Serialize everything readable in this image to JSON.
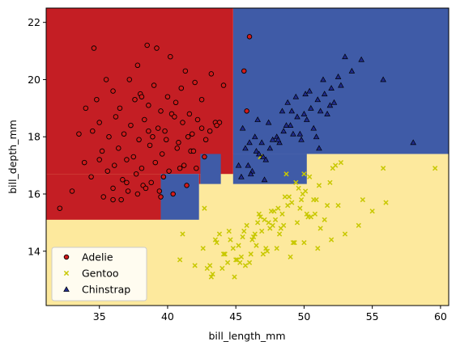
{
  "chart_data": {
    "type": "scatter",
    "title": "",
    "xlabel": "bill_length_mm",
    "ylabel": "bill_depth_mm",
    "xlim": [
      31.1,
      60.6
    ],
    "ylim": [
      12.1,
      22.5
    ],
    "xticks": [
      35,
      40,
      45,
      50,
      55,
      60
    ],
    "yticks": [
      14,
      16,
      18,
      20,
      22
    ],
    "grid": false,
    "legend_position": "lower-left",
    "colors": {
      "region_adelie": "#c41e24",
      "region_gentoo": "#fde99d",
      "region_chinstrap": "#3f5ba7",
      "adelie_marker": "#d11a1a",
      "gentoo_marker": "#c8c800",
      "chinstrap_marker": "#1f2a8c"
    },
    "regions": [
      {
        "class": "Gentoo",
        "x": [
          31.1,
          60.6
        ],
        "y": [
          12.1,
          17.4
        ]
      },
      {
        "class": "Chinstrap",
        "x": [
          44.8,
          60.6
        ],
        "y": [
          17.4,
          22.5
        ]
      },
      {
        "class": "Chinstrap",
        "x": [
          44.8,
          50.2
        ],
        "y": [
          16.35,
          17.4
        ]
      },
      {
        "class": "Adelie",
        "x": [
          31.1,
          44.8
        ],
        "y": [
          16.7,
          22.5
        ]
      },
      {
        "class": "Adelie",
        "x": [
          31.1,
          39.5
        ],
        "y": [
          15.1,
          16.7
        ]
      },
      {
        "class": "Chinstrap",
        "x": [
          39.5,
          42.3
        ],
        "y": [
          15.1,
          16.7
        ]
      },
      {
        "class": "Adelie",
        "x": [
          42.3,
          42.4
        ],
        "y": [
          16.35,
          16.7
        ]
      },
      {
        "class": "Chinstrap",
        "x": [
          42.4,
          43.9
        ],
        "y": [
          16.35,
          17.4
        ]
      },
      {
        "class": "Adelie",
        "x": [
          41.9,
          42.4
        ],
        "y": [
          17.4,
          17.4
        ]
      }
    ],
    "series": [
      {
        "name": "Adelie",
        "marker": "circle",
        "x": [
          34.6,
          37.8,
          38.5,
          39.2,
          40.2,
          41.3,
          45.6,
          46.0,
          35.5,
          36.0,
          37.2,
          38.0,
          39.0,
          40.0,
          41.0,
          42.0,
          43.2,
          44.1,
          36.5,
          37.6,
          38.6,
          39.5,
          40.6,
          41.6,
          42.5,
          43.5,
          34.0,
          35.0,
          36.2,
          37.3,
          38.3,
          39.3,
          40.3,
          41.1,
          42.2,
          43.1,
          33.5,
          34.5,
          35.7,
          36.8,
          37.9,
          38.9,
          39.8,
          40.8,
          41.8,
          42.8,
          43.8,
          35.2,
          36.4,
          37.5,
          38.7,
          39.6,
          40.7,
          41.7,
          42.7,
          33.9,
          35.0,
          36.1,
          37.0,
          38.1,
          39.1,
          40.1,
          41.2,
          42.1,
          34.4,
          35.6,
          36.7,
          37.7,
          38.8,
          39.7,
          40.9,
          41.9,
          36.0,
          37.1,
          38.2,
          39.4,
          40.4,
          41.4,
          35.3,
          36.6,
          37.8,
          38.4,
          39.5,
          32.1,
          33.0,
          36.0,
          37.0,
          38.6,
          39.9,
          41.5,
          42.5,
          43.6,
          45.8,
          34.8,
          38.1,
          40.5
        ],
        "y": [
          21.1,
          20.5,
          21.2,
          21.1,
          20.8,
          20.3,
          20.3,
          21.5,
          20.0,
          19.6,
          20.0,
          19.5,
          19.8,
          19.4,
          19.7,
          19.9,
          20.2,
          19.8,
          19.0,
          19.3,
          19.1,
          18.9,
          19.2,
          18.8,
          19.3,
          18.5,
          19.0,
          18.5,
          18.7,
          18.4,
          18.6,
          18.3,
          18.8,
          18.5,
          18.6,
          18.2,
          18.1,
          18.2,
          18.0,
          18.1,
          17.9,
          18.0,
          18.2,
          17.8,
          18.1,
          17.9,
          18.5,
          17.5,
          17.6,
          17.3,
          17.7,
          17.4,
          17.6,
          17.5,
          17.3,
          17.1,
          17.2,
          17.0,
          17.2,
          16.9,
          17.1,
          16.8,
          17.0,
          16.9,
          16.6,
          16.8,
          16.5,
          16.7,
          16.4,
          16.6,
          16.9,
          17.5,
          16.2,
          16.1,
          16.3,
          16.1,
          16.0,
          16.3,
          15.9,
          15.8,
          16.0,
          16.2,
          15.9,
          15.5,
          16.1,
          15.8,
          16.4,
          18.2,
          17.9,
          18.0,
          18.3,
          18.4,
          18.9,
          19.3,
          19.4,
          18.7
        ]
      },
      {
        "name": "Gentoo",
        "marker": "x",
        "x": [
          40.9,
          42.0,
          43.2,
          44.0,
          45.0,
          46.0,
          47.0,
          48.0,
          49.0,
          50.0,
          51.0,
          52.0,
          53.0,
          54.0,
          55.0,
          56.0,
          59.6,
          43.5,
          44.5,
          45.5,
          46.5,
          47.5,
          48.5,
          49.5,
          50.5,
          51.5,
          52.5,
          44.2,
          45.2,
          46.2,
          47.2,
          48.2,
          49.2,
          50.2,
          51.2,
          43.8,
          44.8,
          45.8,
          46.8,
          47.8,
          48.8,
          49.8,
          50.8,
          42.6,
          43.6,
          44.6,
          45.6,
          46.6,
          47.6,
          48.6,
          49.6,
          45.1,
          46.1,
          47.1,
          48.1,
          49.1,
          50.1,
          51.1,
          52.1,
          44.4,
          45.4,
          46.4,
          47.4,
          48.4,
          49.4,
          50.4,
          46.9,
          47.9,
          48.9,
          49.9,
          50.9,
          51.9,
          42.9,
          44.9,
          46.3,
          48.3,
          50.3,
          52.3,
          45.7,
          47.7,
          49.7,
          51.7,
          55.8,
          43.3,
          45.3,
          47.3,
          49.3,
          44.1,
          46.7,
          48.7,
          50.7,
          52.7,
          54.3,
          43.1,
          41.1,
          42.7,
          46.8,
          50.0
        ],
        "y": [
          13.7,
          13.5,
          13.1,
          13.4,
          13.7,
          13.6,
          13.9,
          14.1,
          13.8,
          14.3,
          14.1,
          14.4,
          14.6,
          14.9,
          15.4,
          15.7,
          16.9,
          14.4,
          14.7,
          14.5,
          14.2,
          14.8,
          14.9,
          15.0,
          15.2,
          15.1,
          15.6,
          13.9,
          14.2,
          14.4,
          14.1,
          14.6,
          14.3,
          15.3,
          14.8,
          14.6,
          14.1,
          14.9,
          15.2,
          15.4,
          15.6,
          15.8,
          15.3,
          14.1,
          14.3,
          14.4,
          14.7,
          15.0,
          15.4,
          15.9,
          16.2,
          13.7,
          13.9,
          15.1,
          15.5,
          15.7,
          16.1,
          16.3,
          16.9,
          13.6,
          13.8,
          14.6,
          15.0,
          15.3,
          16.4,
          16.6,
          14.7,
          15.1,
          15.9,
          16.0,
          15.8,
          16.4,
          13.4,
          13.1,
          14.5,
          14.8,
          15.2,
          17.0,
          13.5,
          14.9,
          15.5,
          15.6,
          16.9,
          13.2,
          13.6,
          14.0,
          14.3,
          13.9,
          15.3,
          16.7,
          15.8,
          17.1,
          15.8,
          13.5,
          14.6,
          15.5,
          17.3,
          16.7
        ]
      },
      {
        "name": "Chinstrap",
        "marker": "triangle",
        "x": [
          46.0,
          46.5,
          47.0,
          47.5,
          48.0,
          48.5,
          49.0,
          49.5,
          50.0,
          50.5,
          51.0,
          51.5,
          52.0,
          52.5,
          53.5,
          54.2,
          55.8,
          58.0,
          45.2,
          46.2,
          47.2,
          48.2,
          49.2,
          50.2,
          51.2,
          52.2,
          45.5,
          46.4,
          47.4,
          48.4,
          49.4,
          50.4,
          51.4,
          45.7,
          46.7,
          47.7,
          48.7,
          49.7,
          50.7,
          51.7,
          52.7,
          46.1,
          47.1,
          48.1,
          49.1,
          50.1,
          51.1,
          45.9,
          46.9,
          50.9,
          51.9,
          53.0,
          49.8,
          48.8,
          46.6,
          45.4
        ],
        "y": [
          17.8,
          17.5,
          17.3,
          17.6,
          18.0,
          18.2,
          18.4,
          18.7,
          18.8,
          19.0,
          19.3,
          19.5,
          19.7,
          20.1,
          20.3,
          20.7,
          20.0,
          17.8,
          17.0,
          16.8,
          17.2,
          17.8,
          18.1,
          18.6,
          18.9,
          19.2,
          18.3,
          18.0,
          18.5,
          18.9,
          19.4,
          19.6,
          20.0,
          17.6,
          17.4,
          17.9,
          18.4,
          18.1,
          18.3,
          18.8,
          19.8,
          16.7,
          16.5,
          17.9,
          18.9,
          19.5,
          17.6,
          17.0,
          17.8,
          18.0,
          19.1,
          20.8,
          17.9,
          19.2,
          18.6,
          16.6
        ]
      }
    ]
  }
}
